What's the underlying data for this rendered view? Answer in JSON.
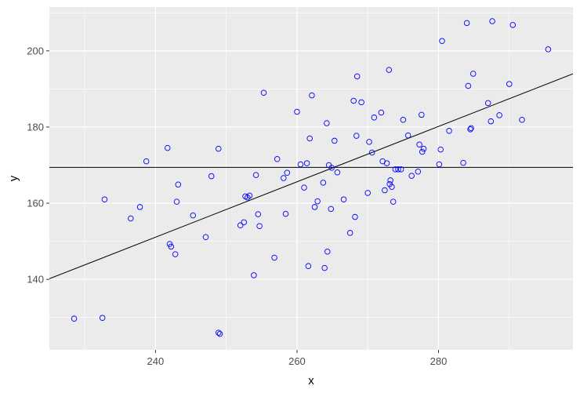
{
  "chart_data": {
    "type": "scatter",
    "title": "",
    "xlabel": "x",
    "ylabel": "y",
    "xlim": [
      225,
      299
    ],
    "ylim": [
      121.5,
      211.5
    ],
    "x_ticks": [
      240,
      260,
      280
    ],
    "y_ticks": [
      140,
      160,
      180,
      200
    ],
    "x_tick_labels": [
      "240",
      "260",
      "280"
    ],
    "y_tick_labels": [
      "140",
      "160",
      "180",
      "200"
    ],
    "grid": true,
    "legend": "none",
    "colors": {
      "panel_background": "#ebebeb",
      "grid_major": "#ffffff",
      "point_stroke": "#0000ff",
      "line": "#000000"
    },
    "points": {
      "x": [
        228.5,
        232.5,
        232.8,
        236.5,
        237.8,
        238.7,
        241.7,
        242.0,
        242.2,
        242.8,
        243.0,
        243.2,
        245.3,
        247.1,
        247.9,
        248.9,
        249.1,
        252.0,
        252.5,
        252.7,
        253.0,
        253.3,
        253.9,
        254.2,
        254.5,
        254.7,
        255.3,
        256.8,
        257.2,
        258.1,
        258.4,
        258.6,
        260.0,
        260.5,
        261.0,
        261.4,
        261.6,
        261.8,
        262.1,
        262.5,
        262.9,
        263.7,
        263.9,
        264.2,
        264.3,
        264.5,
        264.8,
        264.9,
        265.3,
        265.7,
        266.6,
        267.5,
        268.0,
        268.2,
        268.4,
        268.5,
        269.1,
        270.0,
        270.2,
        270.6,
        270.9,
        271.9,
        272.1,
        272.4,
        272.7,
        273.0,
        273.1,
        273.2,
        273.4,
        273.6,
        273.9,
        274.3,
        274.7,
        275.0,
        275.7,
        276.2,
        277.1,
        277.3,
        277.6,
        277.7,
        277.9,
        280.1,
        280.3,
        280.5,
        281.5,
        283.5,
        284.0,
        284.2,
        284.5,
        284.6,
        284.9,
        287.0,
        287.4,
        287.6,
        288.6,
        290.0,
        290.5,
        291.8,
        295.5,
        248.9
      ],
      "y": [
        129.7,
        129.9,
        161.0,
        156.0,
        159.0,
        171.0,
        174.5,
        149.3,
        148.6,
        146.6,
        160.4,
        164.9,
        156.8,
        151.1,
        167.1,
        174.3,
        125.7,
        154.2,
        155.0,
        161.8,
        161.5,
        162.0,
        141.1,
        167.4,
        157.1,
        154.0,
        189.0,
        145.7,
        171.6,
        166.6,
        157.2,
        168.0,
        184.0,
        170.2,
        164.1,
        170.5,
        143.5,
        177.0,
        188.3,
        159.0,
        160.5,
        165.4,
        143.0,
        181.0,
        147.3,
        170.0,
        158.5,
        169.3,
        176.4,
        168.1,
        161.0,
        152.2,
        186.9,
        156.4,
        177.7,
        193.3,
        186.5,
        162.7,
        176.1,
        173.3,
        182.5,
        183.8,
        171.0,
        163.4,
        170.5,
        195.0,
        165.0,
        166.0,
        164.3,
        160.4,
        168.9,
        168.9,
        168.9,
        181.9,
        177.8,
        167.2,
        168.3,
        175.4,
        183.2,
        173.5,
        174.3,
        170.2,
        174.1,
        202.6,
        179.0,
        170.6,
        207.3,
        190.8,
        179.4,
        179.7,
        194.0,
        186.3,
        181.5,
        207.8,
        183.1,
        191.3,
        206.8,
        181.9,
        200.4,
        126.0
      ]
    },
    "lines": [
      {
        "x": [
          225,
          299
        ],
        "y": [
          140.17,
          193.98
        ]
      },
      {
        "x": [
          225,
          299
        ],
        "y": [
          169.4,
          169.4
        ]
      }
    ]
  }
}
